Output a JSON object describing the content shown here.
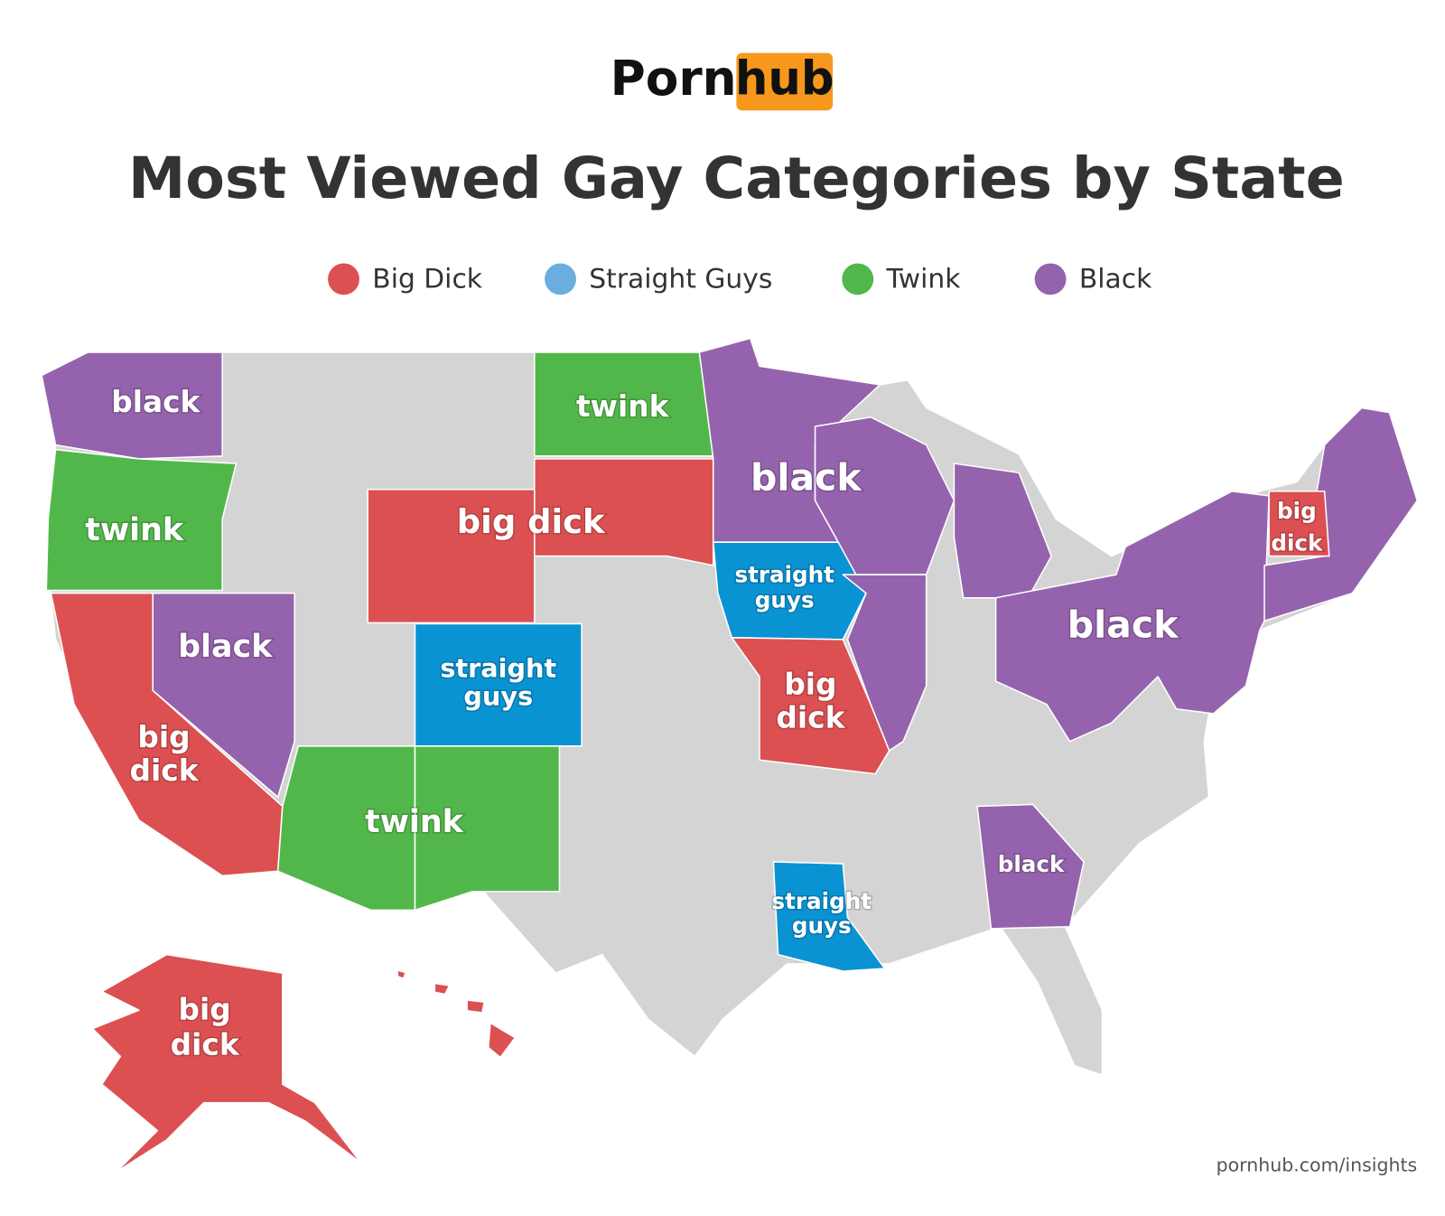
{
  "logo": {
    "text": "Porn",
    "badge": "hub"
  },
  "title": "Most Viewed Gay Categories by State",
  "legend": [
    {
      "name": "Big Dick",
      "color": "#dc5052"
    },
    {
      "name": "Straight Guys",
      "color": "#6aaee0"
    },
    {
      "name": "Twink",
      "color": "#52b74a"
    },
    {
      "name": "Black",
      "color": "#9563ad"
    }
  ],
  "map_labels": [
    {
      "lines": [
        "black"
      ]
    },
    {
      "lines": [
        "twink"
      ]
    },
    {
      "lines": [
        "black"
      ]
    },
    {
      "lines": [
        "big",
        "dick"
      ]
    },
    {
      "lines": [
        "big dick"
      ]
    },
    {
      "lines": [
        "twink"
      ]
    },
    {
      "lines": [
        "straight",
        "guys"
      ]
    },
    {
      "lines": [
        "twink"
      ]
    },
    {
      "lines": [
        "black"
      ]
    },
    {
      "lines": [
        "straight",
        "guys"
      ]
    },
    {
      "lines": [
        "big",
        "dick"
      ]
    },
    {
      "lines": [
        "black"
      ]
    },
    {
      "lines": [
        "big",
        "dick"
      ]
    },
    {
      "lines": [
        "black"
      ]
    },
    {
      "lines": [
        "straight",
        "guys"
      ]
    },
    {
      "lines": [
        "big",
        "dick"
      ]
    }
  ],
  "footer": "pornhub.com/insights"
}
